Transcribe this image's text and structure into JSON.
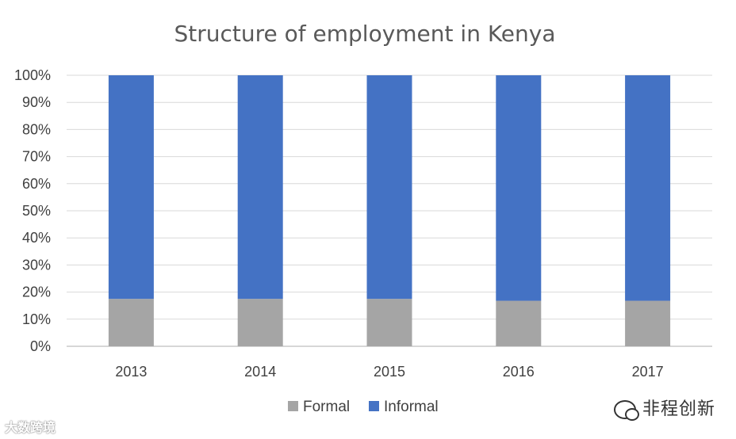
{
  "chart_data": {
    "type": "bar",
    "stacked": true,
    "title": "Structure of employment in Kenya",
    "categories": [
      "2013",
      "2014",
      "2015",
      "2016",
      "2017"
    ],
    "series": [
      {
        "name": "Formal",
        "color": "#a5a5a5",
        "values": [
          17.5,
          17.5,
          17.5,
          16.8,
          16.8
        ]
      },
      {
        "name": "Informal",
        "color": "#4472c4",
        "values": [
          82.5,
          82.5,
          82.5,
          83.2,
          83.2
        ]
      }
    ],
    "yticks": [
      "0%",
      "10%",
      "20%",
      "30%",
      "40%",
      "50%",
      "60%",
      "70%",
      "80%",
      "90%",
      "100%"
    ],
    "ylim": [
      0,
      100
    ],
    "xlabel": "",
    "ylabel": "",
    "grid": true,
    "legend_position": "bottom"
  },
  "watermarks": {
    "right": "非程创新",
    "left": "大数跨境"
  }
}
